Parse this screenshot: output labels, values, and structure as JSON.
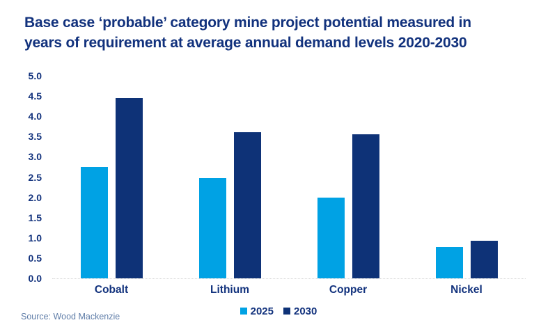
{
  "title": "Base case ‘probable’ category mine project potential measured in years of requirement at average annual demand levels 2020-2030",
  "source": "Source: Wood Mackenzie",
  "colors": {
    "series_2025": "#00A2E4",
    "series_2030": "#0E3277",
    "title_text": "#12327D",
    "axis_text": "#12327D",
    "source_text": "#5F7DA8",
    "baseline": "#D8D8D8",
    "background": "#FFFFFF"
  },
  "chart_data": {
    "type": "bar",
    "title": "Base case ‘probable’ category mine project potential measured in years of requirement at average annual demand levels 2020-2030",
    "categories": [
      "Cobalt",
      "Lithium",
      "Copper",
      "Nickel"
    ],
    "series": [
      {
        "name": "2025",
        "color": "#00A2E4",
        "values": [
          2.75,
          2.48,
          2.0,
          0.77
        ]
      },
      {
        "name": "2030",
        "color": "#0E3277",
        "values": [
          4.45,
          3.6,
          3.55,
          0.92
        ]
      }
    ],
    "xlabel": "",
    "ylabel": "",
    "ylim": [
      0,
      5
    ],
    "ytick_step": 0.5,
    "yticks": [
      "0.0",
      "0.5",
      "1.0",
      "1.5",
      "2.0",
      "2.5",
      "3.0",
      "3.5",
      "4.0",
      "4.5",
      "5.0"
    ],
    "grid": false,
    "legend_position": "bottom-center"
  }
}
